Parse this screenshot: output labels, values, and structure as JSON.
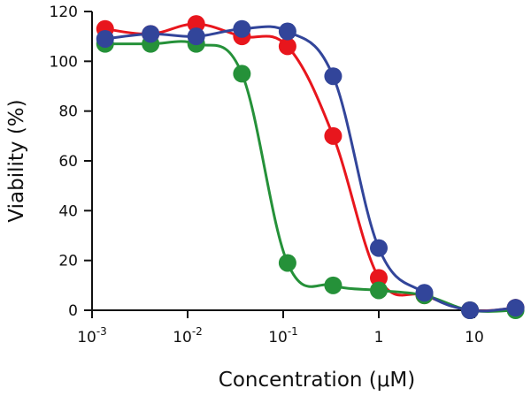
{
  "chart_data": {
    "type": "line",
    "title": "",
    "xlabel": "Concentration (μM)",
    "ylabel": "Viability (%)",
    "xscale": "log",
    "xlim": [
      0.001,
      30
    ],
    "ylim": [
      0,
      120
    ],
    "x_ticks": [
      {
        "base": "10",
        "exp": "-3",
        "value": 0.001
      },
      {
        "base": "10",
        "exp": "-2",
        "value": 0.01
      },
      {
        "base": "10",
        "exp": "-1",
        "value": 0.1
      },
      {
        "base": "1",
        "exp": "",
        "value": 1
      },
      {
        "base": "10",
        "exp": "",
        "value": 10
      }
    ],
    "y_ticks": [
      "0",
      "20",
      "40",
      "60",
      "80",
      "100",
      "120"
    ],
    "grid": false,
    "legend": "none",
    "x": [
      0.00137,
      0.0041,
      0.0123,
      0.037,
      0.111,
      0.333,
      1,
      3,
      9,
      27
    ],
    "series": [
      {
        "name": "red",
        "color": "#e8161d",
        "values": [
          113,
          111,
          115,
          110,
          106,
          70,
          13,
          6,
          0,
          1
        ]
      },
      {
        "name": "green",
        "color": "#259139",
        "values": [
          107,
          107,
          107,
          95,
          19,
          10,
          8,
          6,
          0,
          0
        ]
      },
      {
        "name": "blue",
        "color": "#32459a",
        "values": [
          109,
          111,
          110,
          113,
          112,
          94,
          25,
          7,
          0,
          1
        ]
      }
    ]
  }
}
